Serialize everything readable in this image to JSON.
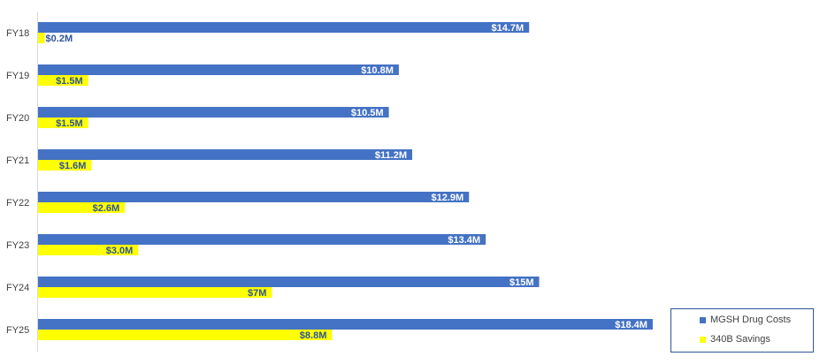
{
  "chart_data": {
    "type": "bar",
    "orientation": "horizontal",
    "categories": [
      "FY18",
      "FY19",
      "FY20",
      "FY21",
      "FY22",
      "FY23",
      "FY24",
      "FY25"
    ],
    "series": [
      {
        "name": "MGSH Drug Costs",
        "color": "#4472c4",
        "label_color": "#ffffff",
        "values": [
          14.7,
          10.8,
          10.5,
          11.2,
          12.9,
          13.4,
          15.0,
          18.4
        ],
        "labels": [
          "$14.7M",
          "$10.8M",
          "$10.5M",
          "$11.2M",
          "$12.9M",
          "$13.4M",
          "$15M",
          "$18.4M"
        ]
      },
      {
        "name": "340B Savings",
        "color": "#ffff00",
        "label_color": "#2f5597",
        "values": [
          0.2,
          1.5,
          1.5,
          1.6,
          2.6,
          3.0,
          7.0,
          8.8
        ],
        "labels": [
          "$0.2M",
          "$1.5M",
          "$1.5M",
          "$1.6M",
          "$2.6M",
          "$3.0M",
          "$7M",
          "$8.8M"
        ]
      }
    ],
    "xlim": [
      0,
      23.3
    ],
    "grid": false,
    "legend_position": "bottom-right"
  }
}
